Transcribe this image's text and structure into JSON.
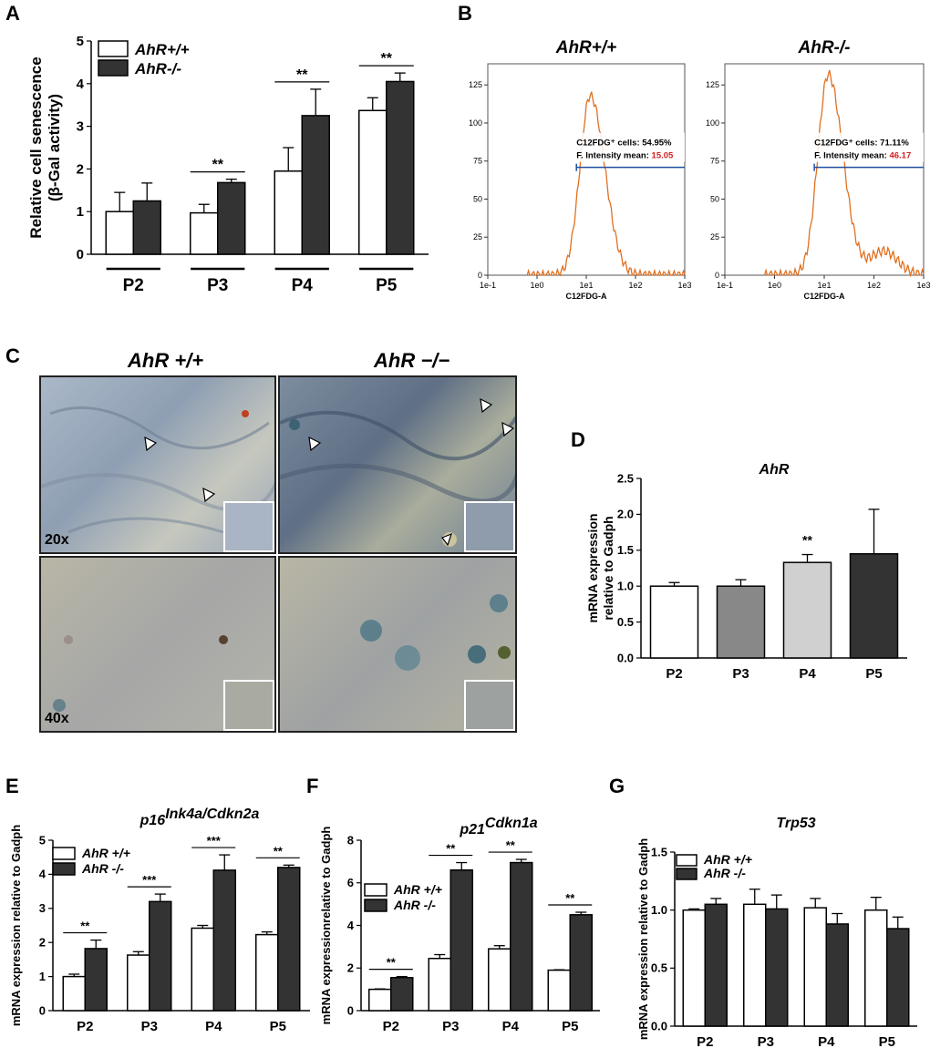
{
  "panels": {
    "A": "A",
    "B": "B",
    "C": "C",
    "D": "D",
    "E": "E",
    "F": "F",
    "G": "G"
  },
  "colors": {
    "wt": "#ffffff",
    "ko": "#333333",
    "flow": "#e07020",
    "gate": "#1f4fa0",
    "highlight": "#d02020",
    "p3": "#888888",
    "p4": "#d0d0d0"
  },
  "microscopy": {
    "titles": [
      "AhR +/+",
      "AhR −/−"
    ],
    "magnifications": [
      "20x",
      "40x"
    ],
    "arrowhead_icon": "arrowhead-icon"
  },
  "flow": {
    "panels": [
      {
        "title": "AhR+/+",
        "xlabel": "C12FDG-A",
        "line1": "C12FDG⁺ cells: 54.95%",
        "line2_label": "F. Intensity mean: ",
        "line2_value": "15.05",
        "peak": 0.85,
        "ymax": 125
      },
      {
        "title": "AhR-/-",
        "xlabel": "C12FDG-A",
        "line1": "C12FDG⁺ cells: 71.11%",
        "line2_label": "F. Intensity mean: ",
        "line2_value": "46.17",
        "peak": 0.95,
        "ymax": 125
      }
    ],
    "yticks": [
      0,
      25,
      50,
      75,
      100,
      125
    ],
    "xticks": [
      "1e-1",
      "1e0",
      "1e1",
      "1e2",
      "1e3"
    ]
  },
  "chart_data": [
    {
      "id": "A",
      "type": "bar",
      "title": "",
      "ylabel_line1": "Relative cell senescence",
      "ylabel_line2": "(β-Gal activity)",
      "xlabel": "",
      "ylim": [
        0,
        5
      ],
      "yticks": [
        0,
        1,
        2,
        3,
        4,
        5
      ],
      "categories": [
        "P2",
        "P3",
        "P4",
        "P5"
      ],
      "series": [
        {
          "name": "AhR+/+",
          "values": [
            1.0,
            0.97,
            1.95,
            3.37
          ],
          "errors": [
            0.45,
            0.2,
            0.55,
            0.3
          ]
        },
        {
          "name": "AhR-/-",
          "values": [
            1.25,
            1.68,
            3.25,
            4.05
          ],
          "errors": [
            0.42,
            0.08,
            0.62,
            0.2
          ]
        }
      ],
      "significance": [
        "",
        "**",
        "**",
        "**"
      ],
      "legend": "top-left"
    },
    {
      "id": "D",
      "type": "bar",
      "title": "AhR",
      "ylabel_line1": "mRNA expression",
      "ylabel_line2": "relative to Gadph",
      "ylim": [
        0,
        2.5
      ],
      "yticks": [
        "0.0",
        "0.5",
        "1.0",
        "1.5",
        "2.0",
        "2.5"
      ],
      "categories": [
        "P2",
        "P3",
        "P4",
        "P5"
      ],
      "values": [
        1.0,
        1.0,
        1.33,
        1.45
      ],
      "errors": [
        0.05,
        0.09,
        0.11,
        0.62
      ],
      "significance": [
        "",
        "",
        "**",
        ""
      ]
    },
    {
      "id": "E",
      "type": "bar",
      "title_base": "p16",
      "title_sup": "Ink4a/Cdkn2a",
      "ylabel": "mRNA expression  relative to Gadph",
      "ylim": [
        0,
        5
      ],
      "yticks": [
        0,
        1,
        2,
        3,
        4,
        5
      ],
      "categories": [
        "P2",
        "P3",
        "P4",
        "P5"
      ],
      "series": [
        {
          "name": "AhR +/+",
          "values": [
            1.0,
            1.63,
            2.42,
            2.23
          ],
          "errors": [
            0.07,
            0.1,
            0.08,
            0.08
          ]
        },
        {
          "name": "AhR -/-",
          "values": [
            1.82,
            3.2,
            4.12,
            4.2
          ],
          "errors": [
            0.25,
            0.22,
            0.45,
            0.07
          ]
        }
      ],
      "significance": [
        "**",
        "***",
        "***",
        "**"
      ],
      "legend": "top-left"
    },
    {
      "id": "F",
      "type": "bar",
      "title_base": "p21",
      "title_sup": "Cdkn1a",
      "ylabel": "mRNA expressionrelative to Gadph",
      "ylim": [
        0,
        8
      ],
      "yticks": [
        0,
        2,
        4,
        6,
        8
      ],
      "categories": [
        "P2",
        "P3",
        "P4",
        "P5"
      ],
      "series": [
        {
          "name": "AhR +/+",
          "values": [
            1.0,
            2.45,
            2.9,
            1.9
          ],
          "errors": [
            0.02,
            0.18,
            0.15,
            0.02
          ]
        },
        {
          "name": "AhR -/-",
          "values": [
            1.55,
            6.6,
            6.95,
            4.5
          ],
          "errors": [
            0.05,
            0.35,
            0.15,
            0.12
          ]
        }
      ],
      "significance": [
        "**",
        "**",
        "**",
        "**"
      ],
      "legend": "top-left"
    },
    {
      "id": "G",
      "type": "bar",
      "title": "Trp53",
      "ylabel": "mRNA expression relative to Gadph",
      "ylim": [
        0,
        1.5
      ],
      "yticks": [
        "0.0",
        "0.5",
        "1.0",
        "1.5"
      ],
      "categories": [
        "P2",
        "P3",
        "P4",
        "P5"
      ],
      "series": [
        {
          "name": "AhR +/+",
          "values": [
            1.0,
            1.05,
            1.02,
            1.0
          ],
          "errors": [
            0.01,
            0.13,
            0.08,
            0.11
          ]
        },
        {
          "name": "AhR -/-",
          "values": [
            1.05,
            1.01,
            0.88,
            0.84
          ],
          "errors": [
            0.05,
            0.12,
            0.09,
            0.1
          ]
        }
      ],
      "significance": [
        "",
        "",
        "",
        ""
      ],
      "legend": "top-left"
    }
  ]
}
